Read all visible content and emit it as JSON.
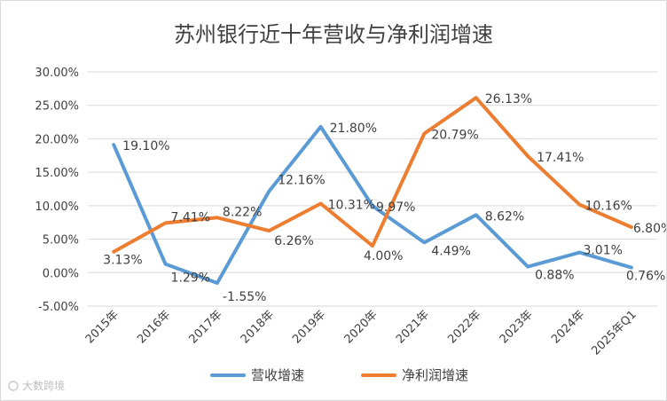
{
  "chart_data": {
    "type": "line",
    "title": "苏州银行近十年营收与净利润增速",
    "categories": [
      "2015年",
      "2016年",
      "2017年",
      "2018年",
      "2019年",
      "2020年",
      "2021年",
      "2022年",
      "2023年",
      "2024年",
      "2025年Q1"
    ],
    "ylim": [
      -5,
      30
    ],
    "yticks": [
      "-5.00%",
      "0.00%",
      "5.00%",
      "10.00%",
      "15.00%",
      "20.00%",
      "25.00%",
      "30.00%"
    ],
    "grid": true,
    "legend_position": "bottom",
    "series": [
      {
        "name": "营收增速",
        "color": "#5b9bd5",
        "values": [
          19.1,
          1.29,
          -1.55,
          12.16,
          21.8,
          9.97,
          4.49,
          8.62,
          0.88,
          3.01,
          0.76
        ],
        "labels": [
          "19.10%",
          "1.29%",
          "-1.55%",
          "12.16%",
          "21.80%",
          "9.97%",
          "4.49%",
          "8.62%",
          "0.88%",
          "3.01%",
          "0.76%"
        ]
      },
      {
        "name": "净利润增速",
        "color": "#ed7d31",
        "values": [
          3.13,
          7.41,
          8.22,
          6.26,
          10.31,
          4.0,
          20.79,
          26.13,
          17.41,
          10.16,
          6.8
        ],
        "labels": [
          "3.13%",
          "7.41%",
          "8.22%",
          "6.26%",
          "10.31%",
          "4.00%",
          "20.79%",
          "26.13%",
          "17.41%",
          "10.16%",
          "6.80%"
        ]
      }
    ]
  },
  "watermark": "大数跨境"
}
